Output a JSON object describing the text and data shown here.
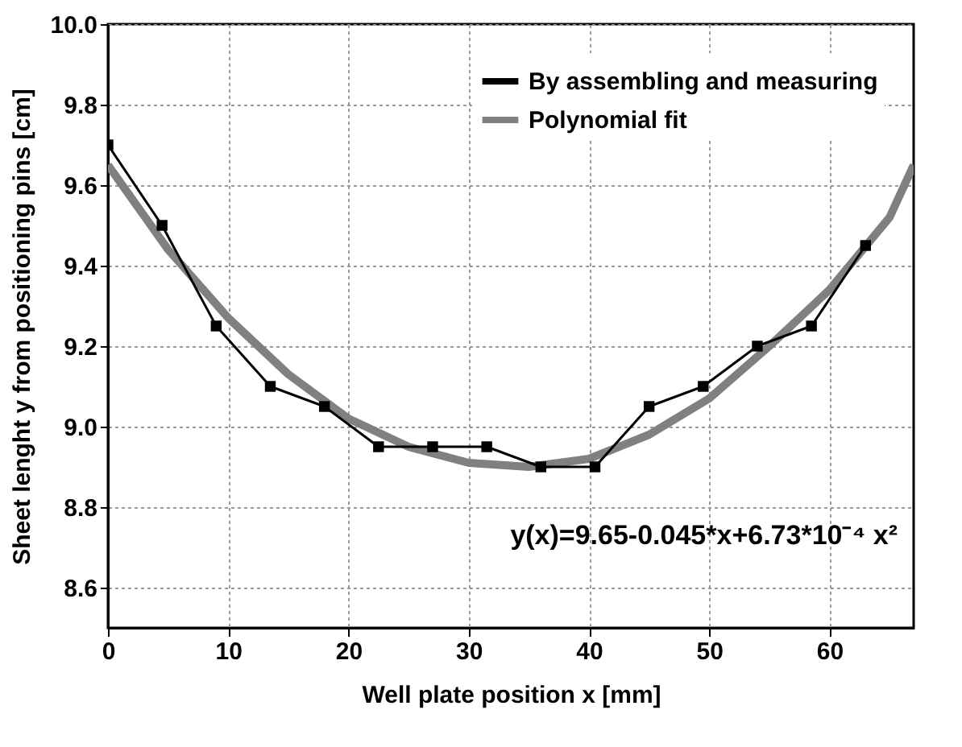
{
  "chart_data": {
    "type": "line",
    "xlabel": "Well plate position x [mm]",
    "ylabel": "Sheet lenght y from positioning pins [cm]",
    "xlim": [
      0,
      67
    ],
    "xticks": [
      0,
      10,
      20,
      30,
      40,
      50,
      60
    ],
    "ylim": [
      8.5,
      10.0
    ],
    "yticks": [
      8.6,
      8.8,
      {
        "value": 9,
        "label": "9.0"
      },
      9.2,
      9.4,
      9.6,
      9.8,
      {
        "value": 10,
        "label": "10.0"
      }
    ],
    "grid": true,
    "legend": "top right",
    "annotations": [
      "y(x)=9.65-0.045*x+6.73*10⁻⁴ x²"
    ],
    "series": [
      {
        "name": "By assembling and measuring",
        "color": "#000000",
        "marker": "square",
        "x": [
          0,
          4.5,
          9,
          13.5,
          18,
          22.5,
          27,
          31.5,
          36,
          40.5,
          45,
          49.5,
          54,
          58.5,
          63
        ],
        "values": [
          9.7,
          9.5,
          9.25,
          9.1,
          9.05,
          8.95,
          8.95,
          8.95,
          8.9,
          8.9,
          9.05,
          9.1,
          9.2,
          9.25,
          9.45
        ]
      },
      {
        "name": "Polynomial fit",
        "color": "#808080",
        "marker": "none",
        "x": [
          0,
          5,
          10,
          15,
          20,
          25,
          30,
          35,
          40,
          45,
          50,
          55,
          60,
          65,
          67
        ],
        "values": [
          9.65,
          9.44,
          9.27,
          9.13,
          9.02,
          8.95,
          8.91,
          8.9,
          8.92,
          8.98,
          9.07,
          9.2,
          9.34,
          9.52,
          9.65
        ]
      }
    ]
  }
}
